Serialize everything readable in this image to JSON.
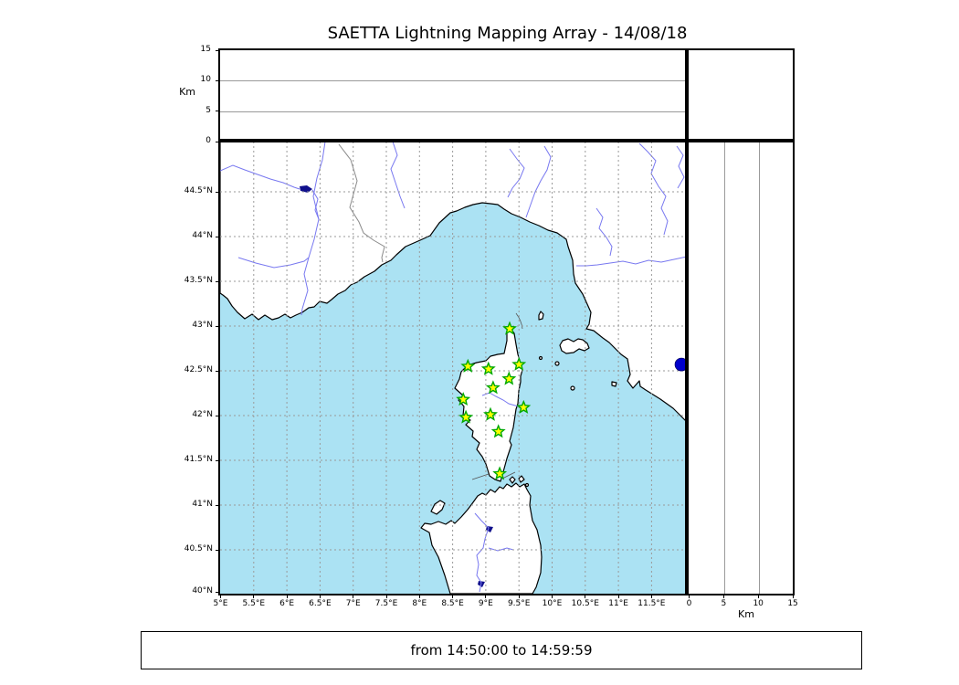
{
  "title": "SAETTA Lightning Mapping Array - 14/08/18",
  "footer": {
    "text": "from 14:50:00 to 14:59:59"
  },
  "altitude_panel": {
    "axis_label": "Km",
    "ticks": [
      {
        "label": "15",
        "km": 15
      },
      {
        "label": "10",
        "km": 10
      },
      {
        "label": "5",
        "km": 5
      },
      {
        "label": "0",
        "km": 0
      }
    ],
    "gridlines_km": [
      5,
      10
    ],
    "range_km": [
      0,
      15
    ]
  },
  "right_panel": {
    "axis_label": "Km",
    "ticks": [
      {
        "label": "0",
        "km": 0
      },
      {
        "label": "5",
        "km": 5
      },
      {
        "label": "10",
        "km": 10
      },
      {
        "label": "15",
        "km": 15
      }
    ],
    "gridlines_km": [
      5,
      10
    ],
    "range_km": [
      0,
      15
    ]
  },
  "map_panel": {
    "lat_range": [
      40.0,
      45.06
    ],
    "lon_range": [
      5.0,
      12.03
    ],
    "lat_ticks": [
      {
        "label": "44.5°N",
        "lat": 44.5
      },
      {
        "label": "44°N",
        "lat": 44.0
      },
      {
        "label": "43.5°N",
        "lat": 43.5
      },
      {
        "label": "43°N",
        "lat": 43.0
      },
      {
        "label": "42.5°N",
        "lat": 42.5
      },
      {
        "label": "42°N",
        "lat": 42.0
      },
      {
        "label": "41.5°N",
        "lat": 41.5
      },
      {
        "label": "41°N",
        "lat": 41.0
      },
      {
        "label": "40.5°N",
        "lat": 40.5
      },
      {
        "label": "40°N",
        "lat": 40.0
      }
    ],
    "lon_ticks": [
      {
        "label": "5°E",
        "lon": 5.0
      },
      {
        "label": "5.5°E",
        "lon": 5.5
      },
      {
        "label": "6°E",
        "lon": 6.0
      },
      {
        "label": "6.5°E",
        "lon": 6.5
      },
      {
        "label": "7°E",
        "lon": 7.0
      },
      {
        "label": "7.5°E",
        "lon": 7.5
      },
      {
        "label": "8°E",
        "lon": 8.0
      },
      {
        "label": "8.5°E",
        "lon": 8.5
      },
      {
        "label": "9°E",
        "lon": 9.0
      },
      {
        "label": "9.5°E",
        "lon": 9.5
      },
      {
        "label": "10°E",
        "lon": 10.0
      },
      {
        "label": "10.5°E",
        "lon": 10.5
      },
      {
        "label": "11°E",
        "lon": 11.0
      },
      {
        "label": "11.5°E",
        "lon": 11.5
      }
    ],
    "stations": [
      {
        "lon": 9.36,
        "lat": 42.97
      },
      {
        "lon": 8.73,
        "lat": 42.55
      },
      {
        "lon": 9.04,
        "lat": 42.52
      },
      {
        "lon": 9.5,
        "lat": 42.57
      },
      {
        "lon": 9.35,
        "lat": 42.41
      },
      {
        "lon": 9.11,
        "lat": 42.31
      },
      {
        "lon": 8.66,
        "lat": 42.18
      },
      {
        "lon": 9.57,
        "lat": 42.09
      },
      {
        "lon": 9.07,
        "lat": 42.01
      },
      {
        "lon": 8.7,
        "lat": 41.98
      },
      {
        "lon": 9.19,
        "lat": 41.82
      },
      {
        "lon": 9.21,
        "lat": 41.35
      }
    ],
    "detections": [
      {
        "lon": 11.95,
        "lat": 42.57
      }
    ],
    "colors": {
      "sea": "#abe2f3",
      "land": "#ffffff",
      "coast": "#000000",
      "river": "#7878f0",
      "lake": "#10108c",
      "grid": "#9a9a9a",
      "country_border": "#8a8a8a",
      "station_fill": "#ffff00",
      "station_edge": "#00a800",
      "detection": "#0000cc"
    }
  }
}
